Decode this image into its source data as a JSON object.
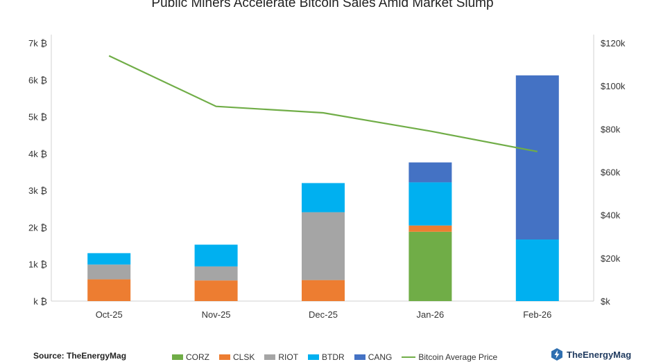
{
  "chart_data": {
    "type": "bar",
    "stacked": true,
    "title": "Public Miners Accelerate Bitcoin Sales Amid Market Slump",
    "categories": [
      "Oct-25",
      "Nov-25",
      "Dec-25",
      "Jan-26",
      "Feb-26"
    ],
    "series": [
      {
        "name": "CORZ",
        "color": "#70ad47",
        "values": [
          0,
          0,
          0,
          1880,
          0
        ]
      },
      {
        "name": "CLSK",
        "color": "#ed7d31",
        "values": [
          590,
          560,
          570,
          170,
          0
        ]
      },
      {
        "name": "RIOT",
        "color": "#a5a5a5",
        "values": [
          400,
          380,
          1840,
          0,
          0
        ]
      },
      {
        "name": "BTDR",
        "color": "#00b0f0",
        "values": [
          310,
          590,
          790,
          1170,
          1670
        ]
      },
      {
        "name": "CANG",
        "color": "#4472c4",
        "values": [
          0,
          0,
          0,
          540,
          4450
        ]
      }
    ],
    "line_series": {
      "name": "Bitcoin Average Price",
      "color": "#70ad47",
      "values": [
        114000,
        90500,
        87500,
        79000,
        69500
      ]
    },
    "left_axis": {
      "range": [
        0,
        7000
      ],
      "ticks": [
        0,
        1000,
        2000,
        3000,
        4000,
        5000,
        6000,
        7000
      ],
      "tick_labels": [
        "k ₿",
        "1k ₿",
        "2k ₿",
        "3k ₿",
        "4k ₿",
        "5k ₿",
        "6k ₿",
        "7k ₿"
      ]
    },
    "right_axis": {
      "range": [
        0,
        120000
      ],
      "ticks": [
        0,
        20000,
        40000,
        60000,
        80000,
        100000,
        120000
      ],
      "tick_labels": [
        "$k",
        "$20k",
        "$40k",
        "$60k",
        "$80k",
        "$100k",
        "$120k"
      ]
    },
    "grid": false,
    "legend_position": "bottom"
  },
  "footer": {
    "source": "Source: TheEnergyMag",
    "brand": "TheEnergyMag"
  }
}
